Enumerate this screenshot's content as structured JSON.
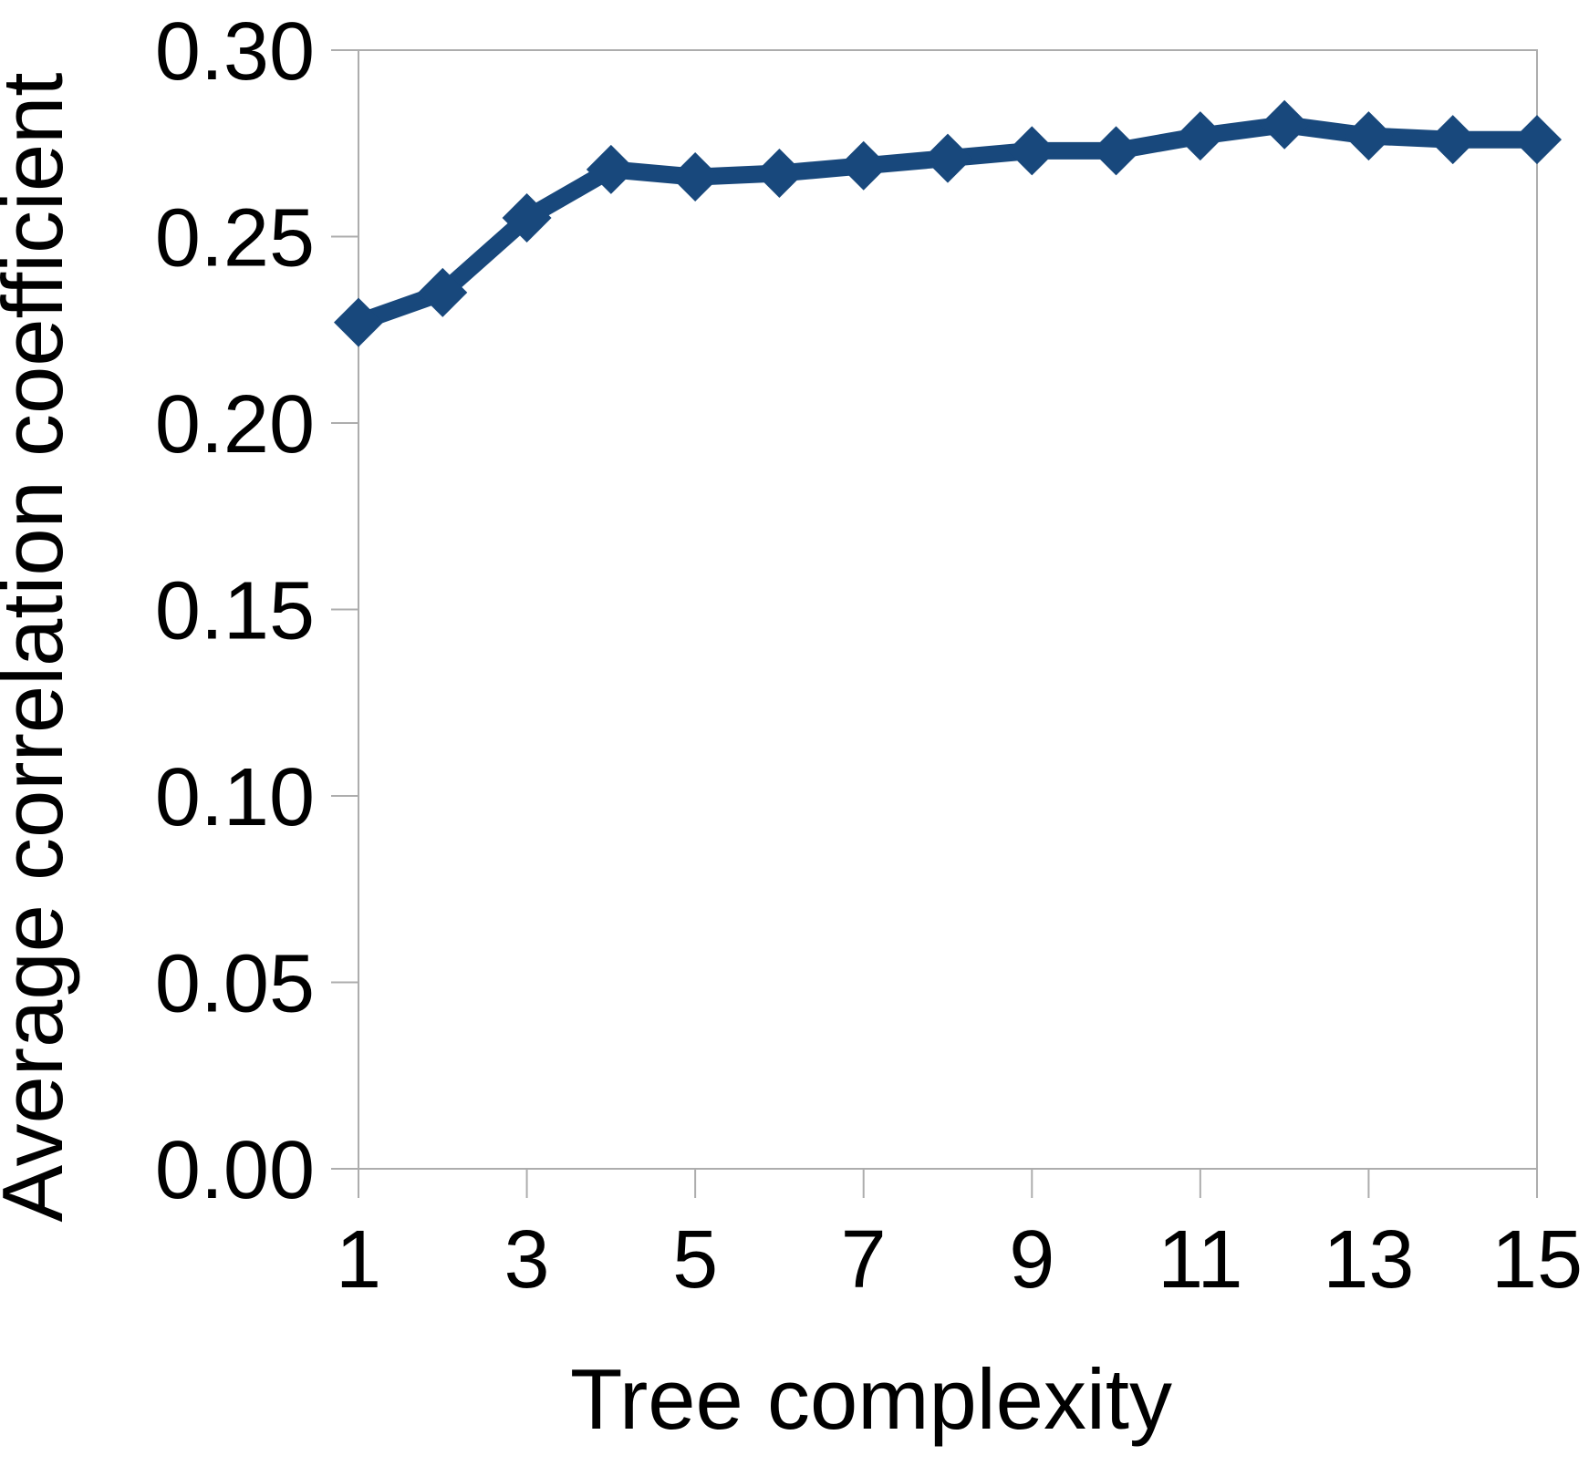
{
  "chart_data": {
    "type": "line",
    "title": "",
    "x": [
      1,
      2,
      3,
      4,
      5,
      6,
      7,
      8,
      9,
      10,
      11,
      12,
      13,
      14,
      15
    ],
    "series": [
      {
        "name": "Average correlation coefficient",
        "values": [
          0.227,
          0.235,
          0.255,
          0.268,
          0.266,
          0.267,
          0.269,
          0.271,
          0.273,
          0.273,
          0.277,
          0.28,
          0.277,
          0.276,
          0.276
        ]
      }
    ],
    "xlabel": "Tree complexity",
    "ylabel": "Average correlation coefficient",
    "xlim": [
      1,
      15
    ],
    "ylim": [
      0.0,
      0.3
    ],
    "x_ticks": [
      1,
      3,
      5,
      7,
      9,
      11,
      13,
      15
    ],
    "x_tick_labels": [
      "1",
      "3",
      "5",
      "7",
      "9",
      "11",
      "13",
      "15"
    ],
    "y_ticks": [
      0.0,
      0.05,
      0.1,
      0.15,
      0.2,
      0.25,
      0.3
    ],
    "y_tick_labels": [
      "0.00",
      "0.05",
      "0.10",
      "0.15",
      "0.20",
      "0.25",
      "0.30"
    ],
    "grid": false,
    "legend_position": "none",
    "marker": "diamond",
    "line_color": "#18487C",
    "axis_color": "#ADADAD",
    "text_color": "#000000",
    "plot_background": "#FFFFFF"
  }
}
